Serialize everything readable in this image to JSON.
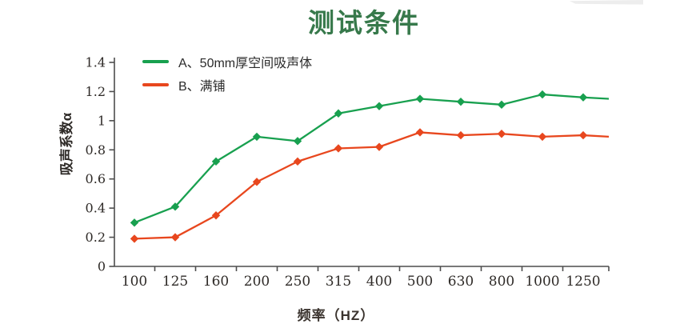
{
  "page": {
    "title": "测试条件"
  },
  "chart_data": {
    "type": "line",
    "title": "测试条件",
    "xlabel": "频率（HZ）",
    "ylabel": "吸声系数α",
    "categories": [
      "100",
      "125",
      "160",
      "200",
      "250",
      "315",
      "400",
      "500",
      "630",
      "800",
      "1000",
      "1250"
    ],
    "yticks": [
      "0",
      "0.2",
      "0.4",
      "0.6",
      "0.8",
      "1",
      "1.2",
      "1.4"
    ],
    "ylim": [
      0,
      1.4
    ],
    "ytick_step": 0.2,
    "grid": false,
    "legend_position": "top-left-inside",
    "title_color": "#37794B",
    "axis_color": "#4d4d4d",
    "text_color": "#2e2a27",
    "series": [
      {
        "name": "A、50mm厚空间吸声体",
        "color": "#18A04F",
        "marker": "diamond",
        "values": [
          0.3,
          0.41,
          0.72,
          0.89,
          0.86,
          1.05,
          1.1,
          1.15,
          1.13,
          1.11,
          1.18,
          1.16
        ],
        "edge_extension": 1.15
      },
      {
        "name": "B、满铺",
        "color": "#E8471E",
        "marker": "diamond",
        "values": [
          0.19,
          0.2,
          0.35,
          0.58,
          0.72,
          0.81,
          0.82,
          0.92,
          0.9,
          0.91,
          0.89,
          0.9
        ],
        "edge_extension": 0.89
      }
    ]
  }
}
